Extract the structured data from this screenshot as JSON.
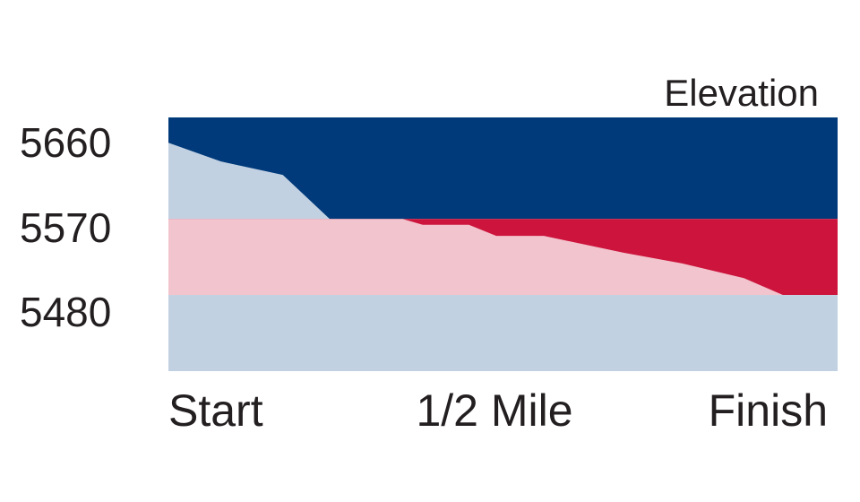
{
  "chart_data": {
    "type": "area",
    "title": "Elevation",
    "xlabel": "",
    "ylabel": "",
    "x_ticks": [
      "Start",
      "1/2 Mile",
      "Finish"
    ],
    "y_ticks": [
      5660,
      5570,
      5480
    ],
    "ylim": [
      5390,
      5690
    ],
    "grid": false,
    "legend": "none",
    "bands": [
      {
        "from": 5570,
        "to": 5690,
        "color": "#003a7a",
        "covered_color": "#c2d1e2"
      },
      {
        "from": 5480,
        "to": 5570,
        "color": "#cc143c",
        "covered_color": "#f2c4cd"
      },
      {
        "from": 5390,
        "to": 5480,
        "color": "#c2d1e2",
        "covered_color": "#c2d1e2"
      }
    ],
    "elevation_profile": {
      "x": [
        0,
        0.078,
        0.171,
        0.241,
        0.35,
        0.38,
        0.449,
        0.49,
        0.561,
        0.68,
        0.77,
        0.86,
        1.0
      ],
      "y": [
        5660,
        5638,
        5622,
        5570,
        5570,
        5563,
        5563,
        5550,
        5550,
        5530,
        5517,
        5500,
        5452
      ]
    }
  }
}
